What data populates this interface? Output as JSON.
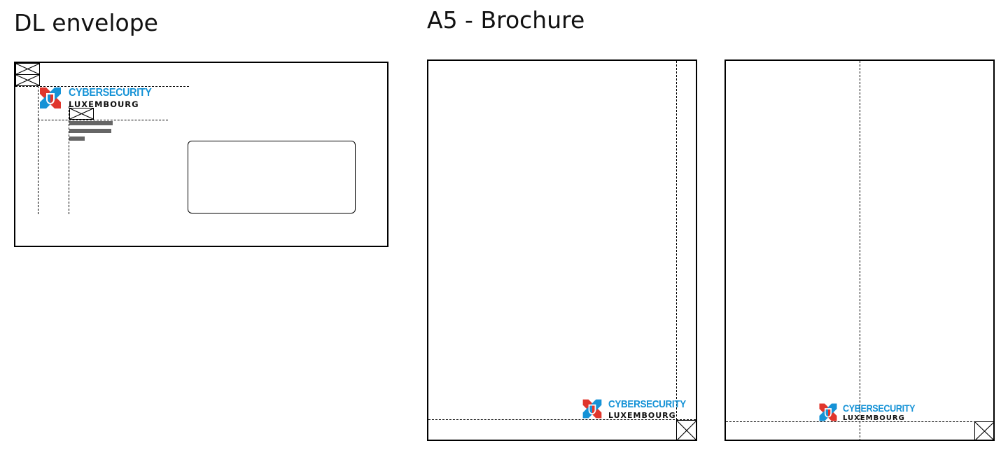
{
  "titles": {
    "dl": "DL envelope",
    "a5": "A5 - Brochure"
  },
  "logo": {
    "line1": "CYBERSECURITY",
    "line2": "LUXEMBOURG",
    "icon": "cybersecurity-luxembourg-logo-icon"
  },
  "colors": {
    "brand_blue": "#1592d6",
    "brand_red": "#e0362c",
    "address_bar_gray": "#666666",
    "outline": "#000000"
  }
}
